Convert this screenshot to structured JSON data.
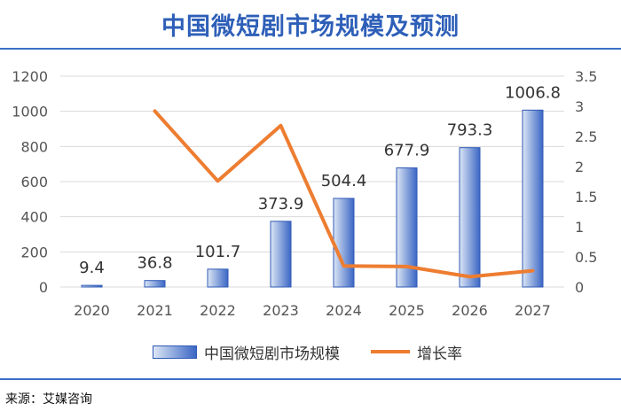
{
  "chart_data": {
    "type": "bar",
    "title": "中国微短剧市场规模及预测",
    "categories": [
      "2020",
      "2021",
      "2022",
      "2023",
      "2024",
      "2025",
      "2026",
      "2027"
    ],
    "series": [
      {
        "name": "中国微短剧市场规模",
        "type": "bar",
        "axis": "left",
        "values": [
          9.4,
          36.8,
          101.7,
          373.9,
          504.4,
          677.9,
          793.3,
          1006.8
        ],
        "labels": [
          "9.4",
          "36.8",
          "101.7",
          "373.9",
          "504.4",
          "677.9",
          "793.3",
          "1006.8"
        ]
      },
      {
        "name": "增长率",
        "type": "line",
        "axis": "right",
        "values": [
          null,
          2.92,
          1.76,
          2.68,
          0.35,
          0.34,
          0.17,
          0.27
        ]
      }
    ],
    "ylim_left": [
      0,
      1200
    ],
    "yticks_left": [
      "0",
      "200",
      "400",
      "600",
      "800",
      "1000",
      "1200"
    ],
    "ylim_right": [
      0,
      3.5
    ],
    "yticks_right": [
      "0",
      "0.5",
      "1",
      "1.5",
      "2",
      "2.5",
      "3",
      "3.5"
    ],
    "grid": "horizontal",
    "legend_position": "bottom",
    "colors": {
      "bar_light": "#dce6f5",
      "bar_dark": "#3a66c4",
      "bar_border": "#2f5ab5",
      "line": "#ed7d31",
      "grid": "#d9d9d9",
      "title": "#2e5fb8"
    }
  },
  "legend": {
    "bar_label": "中国微短剧市场规模",
    "line_label": "增长率"
  },
  "footer": {
    "source": "来源：艾媒咨询"
  }
}
